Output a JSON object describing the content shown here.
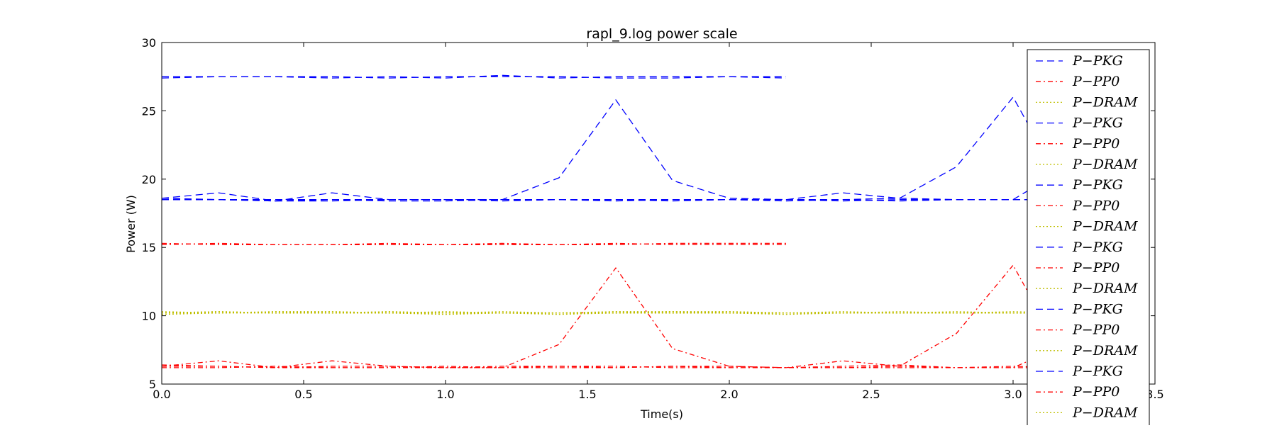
{
  "chart_data": {
    "type": "line",
    "title": "rapl_9.log power scale",
    "xlabel": "Time(s)",
    "ylabel": "Power (W)",
    "xlim": [
      0.0,
      3.5
    ],
    "ylim": [
      5,
      30
    ],
    "xticks": [
      "0.0",
      "0.5",
      "1.0",
      "1.5",
      "2.0",
      "2.5",
      "3.0",
      "3.5"
    ],
    "yticks": [
      "5",
      "10",
      "15",
      "20",
      "25",
      "30"
    ],
    "grid": false,
    "legend_placement": "right, overflowing below the axes",
    "legend": [
      "P−PKG",
      "P−PP0",
      "P−DRAM",
      "P−PKG",
      "P−PP0",
      "P−DRAM",
      "P−PKG",
      "P−PP0",
      "P−DRAM",
      "P−PKG",
      "P−PP0",
      "P−DRAM",
      "P−PKG",
      "P−PP0",
      "P−DRAM",
      "P−PKG",
      "P−PP0",
      "P−DRAM"
    ],
    "colors": {
      "PKG": "#0000ff",
      "PP0": "#ff0000",
      "DRAM": "#bfbf00"
    },
    "series": [
      {
        "name": "P−PKG",
        "style": "dashed",
        "color": "#0000ff",
        "x": [
          0.0,
          0.2,
          0.4,
          0.6,
          0.8,
          1.0,
          1.2,
          1.4,
          1.6,
          1.8,
          2.0,
          2.2
        ],
        "y": [
          27.5,
          27.5,
          27.5,
          27.4,
          27.5,
          27.4,
          27.6,
          27.4,
          27.5,
          27.5,
          27.5,
          27.5
        ]
      },
      {
        "name": "P−PP0",
        "style": "dashdot",
        "color": "#ff0000",
        "x": [
          0.0,
          0.2,
          0.4,
          0.6,
          0.8,
          1.0,
          1.2,
          1.4,
          1.6,
          1.8,
          2.0,
          2.2
        ],
        "y": [
          15.2,
          15.3,
          15.2,
          15.2,
          15.2,
          15.2,
          15.3,
          15.2,
          15.2,
          15.3,
          15.3,
          15.3
        ]
      },
      {
        "name": "P−DRAM",
        "style": "dotted",
        "color": "#bfbf00",
        "x": [
          0.0,
          0.2,
          0.4,
          0.6,
          0.8,
          1.0,
          1.2,
          1.4,
          1.6,
          1.8,
          2.0,
          2.2
        ],
        "y": [
          10.2,
          10.3,
          10.2,
          10.2,
          10.3,
          10.2,
          10.2,
          10.2,
          10.3,
          10.2,
          10.2,
          10.2
        ]
      },
      {
        "name": "P−PKG",
        "style": "dashed",
        "color": "#0000ff",
        "x": [
          0.0,
          0.2,
          0.4,
          0.6,
          0.8,
          1.0,
          1.2,
          1.4,
          1.6,
          1.8,
          2.0,
          2.2
        ],
        "y": [
          27.4,
          27.5,
          27.5,
          27.5,
          27.4,
          27.5,
          27.5,
          27.5,
          27.4,
          27.4,
          27.5,
          27.4
        ]
      },
      {
        "name": "P−PP0",
        "style": "dashdot",
        "color": "#ff0000",
        "x": [
          0.0,
          0.2,
          0.4,
          0.6,
          0.8,
          1.0,
          1.2,
          1.4,
          1.6,
          1.8,
          2.0,
          2.2
        ],
        "y": [
          15.3,
          15.2,
          15.2,
          15.2,
          15.3,
          15.2,
          15.2,
          15.2,
          15.3,
          15.2,
          15.2,
          15.2
        ]
      },
      {
        "name": "P−DRAM",
        "style": "dotted",
        "color": "#bfbf00",
        "x": [
          0.0,
          0.2,
          0.4,
          0.6,
          0.8,
          1.0,
          1.2,
          1.4,
          1.6,
          1.8,
          2.0,
          2.2
        ],
        "y": [
          10.3,
          10.2,
          10.3,
          10.3,
          10.2,
          10.2,
          10.3,
          10.2,
          10.2,
          10.3,
          10.3,
          10.2
        ]
      },
      {
        "name": "P−PKG",
        "style": "dashed",
        "color": "#0000ff",
        "x": [
          0.0,
          0.2,
          0.4,
          0.6,
          0.8,
          1.0,
          1.2,
          1.4,
          1.6,
          1.8,
          2.0,
          2.2,
          2.4,
          2.6,
          2.8,
          3.0,
          3.2
        ],
        "y": [
          18.6,
          19.0,
          18.4,
          19.0,
          18.5,
          18.5,
          18.5,
          20.1,
          25.8,
          19.9,
          18.6,
          18.5,
          19.0,
          18.6,
          20.9,
          26.0,
          18.5
        ]
      },
      {
        "name": "P−PP0",
        "style": "dashdot",
        "color": "#ff0000",
        "x": [
          0.0,
          0.2,
          0.4,
          0.6,
          0.8,
          1.0,
          1.2,
          1.4,
          1.6,
          1.8,
          2.0,
          2.2,
          2.4,
          2.6,
          2.8,
          3.0,
          3.2
        ],
        "y": [
          6.3,
          6.7,
          6.2,
          6.7,
          6.3,
          6.2,
          6.2,
          7.9,
          13.5,
          7.6,
          6.3,
          6.2,
          6.7,
          6.3,
          8.7,
          13.7,
          6.2
        ]
      },
      {
        "name": "P−DRAM",
        "style": "dotted",
        "color": "#bfbf00",
        "x": [
          0.0,
          0.2,
          0.4,
          0.6,
          0.8,
          1.0,
          1.2,
          1.4,
          1.6,
          1.8,
          2.0,
          2.2,
          2.4,
          2.6,
          2.8,
          3.0,
          3.2
        ],
        "y": [
          10.2,
          10.3,
          10.2,
          10.3,
          10.2,
          10.2,
          10.2,
          10.2,
          10.3,
          10.3,
          10.2,
          10.2,
          10.2,
          10.3,
          10.2,
          10.3,
          10.2
        ]
      },
      {
        "name": "P−PKG",
        "style": "dashed",
        "color": "#0000ff",
        "x": [
          0.0,
          0.2,
          0.4,
          0.6,
          0.8,
          1.0,
          1.2,
          1.4,
          1.6,
          1.8,
          2.0,
          2.2,
          2.4,
          2.6,
          2.8,
          3.0,
          3.2,
          3.4
        ],
        "y": [
          18.6,
          18.5,
          18.4,
          18.5,
          18.5,
          18.5,
          18.5,
          18.5,
          18.4,
          18.5,
          18.5,
          18.4,
          18.5,
          18.6,
          18.5,
          18.5,
          21.0,
          24.0
        ]
      },
      {
        "name": "P−PP0",
        "style": "dashdot",
        "color": "#ff0000",
        "x": [
          0.0,
          0.2,
          0.4,
          0.6,
          0.8,
          1.0,
          1.2,
          1.4,
          1.6,
          1.8,
          2.0,
          2.2,
          2.4,
          2.6,
          2.8,
          3.0,
          3.2
        ],
        "y": [
          6.4,
          6.3,
          6.2,
          6.3,
          6.3,
          6.2,
          6.3,
          6.3,
          6.2,
          6.3,
          6.3,
          6.2,
          6.3,
          6.4,
          6.2,
          6.2,
          8.0
        ]
      },
      {
        "name": "P−DRAM",
        "style": "dotted",
        "color": "#bfbf00",
        "x": [
          0.0,
          0.2,
          0.4,
          0.6,
          0.8,
          1.0,
          1.2,
          1.4,
          1.6,
          1.8,
          2.0,
          2.2,
          2.4,
          2.6,
          2.8,
          3.0,
          3.2
        ],
        "y": [
          10.2,
          10.2,
          10.3,
          10.2,
          10.2,
          10.3,
          10.2,
          10.2,
          10.2,
          10.2,
          10.3,
          10.2,
          10.3,
          10.2,
          10.2,
          10.2,
          10.2
        ]
      },
      {
        "name": "P−PKG",
        "style": "dashed",
        "color": "#0000ff",
        "x": [
          0.0,
          0.2,
          0.4,
          0.6,
          0.8,
          1.0,
          1.2,
          1.4,
          1.6,
          1.8,
          2.0,
          2.2,
          2.4,
          2.6,
          2.8,
          3.0,
          3.2
        ],
        "y": [
          18.5,
          18.5,
          18.5,
          18.5,
          18.4,
          18.4,
          18.5,
          18.5,
          18.5,
          18.5,
          18.5,
          18.5,
          18.4,
          18.5,
          18.5,
          18.5,
          18.5
        ]
      },
      {
        "name": "P−PP0",
        "style": "dashdot",
        "color": "#ff0000",
        "x": [
          0.0,
          0.2,
          0.4,
          0.6,
          0.8,
          1.0,
          1.2,
          1.4,
          1.6,
          1.8,
          2.0,
          2.2,
          2.4,
          2.6,
          2.8,
          3.0,
          3.2
        ],
        "y": [
          6.3,
          6.3,
          6.2,
          6.2,
          6.2,
          6.2,
          6.2,
          6.3,
          6.3,
          6.2,
          6.2,
          6.2,
          6.2,
          6.3,
          6.2,
          6.2,
          6.2
        ]
      },
      {
        "name": "P−DRAM",
        "style": "dotted",
        "color": "#bfbf00",
        "x": [
          0.0,
          0.2,
          0.4,
          0.6,
          0.8,
          1.0,
          1.2,
          1.4,
          1.6,
          1.8,
          2.0,
          2.2,
          2.4,
          2.6,
          2.8,
          3.0,
          3.2
        ],
        "y": [
          10.1,
          10.2,
          10.2,
          10.2,
          10.2,
          10.1,
          10.2,
          10.1,
          10.2,
          10.2,
          10.2,
          10.1,
          10.2,
          10.2,
          10.2,
          10.2,
          10.2
        ]
      },
      {
        "name": "P−PKG",
        "style": "dashed",
        "color": "#0000ff",
        "x": [
          0.0,
          0.2,
          0.4,
          0.6,
          0.8,
          1.0,
          1.2,
          1.4,
          1.6,
          1.8,
          2.0,
          2.2,
          2.4,
          2.6,
          2.8,
          3.0,
          3.2
        ],
        "y": [
          18.5,
          18.5,
          18.4,
          18.4,
          18.5,
          18.5,
          18.4,
          18.5,
          18.5,
          18.4,
          18.5,
          18.5,
          18.5,
          18.4,
          18.5,
          18.5,
          18.5
        ]
      },
      {
        "name": "P−PP0",
        "style": "dashdot",
        "color": "#ff0000",
        "x": [
          0.0,
          0.2,
          0.4,
          0.6,
          0.8,
          1.0,
          1.2,
          1.4,
          1.6,
          1.8,
          2.0,
          2.2,
          2.4,
          2.6,
          2.8,
          3.0,
          3.2
        ],
        "y": [
          6.2,
          6.2,
          6.3,
          6.2,
          6.2,
          6.3,
          6.2,
          6.2,
          6.2,
          6.3,
          6.2,
          6.2,
          6.2,
          6.2,
          6.2,
          6.3,
          6.2
        ]
      },
      {
        "name": "P−DRAM",
        "style": "dotted",
        "color": "#bfbf00",
        "x": [
          0.0,
          0.2,
          0.4,
          0.6,
          0.8,
          1.0,
          1.2,
          1.4,
          1.6,
          1.8,
          2.0,
          2.2,
          2.4,
          2.6,
          2.8,
          3.0,
          3.2
        ],
        "y": [
          10.2,
          10.3,
          10.2,
          10.2,
          10.3,
          10.2,
          10.2,
          10.2,
          10.2,
          10.3,
          10.2,
          10.2,
          10.2,
          10.2,
          10.3,
          10.2,
          10.2
        ]
      }
    ]
  }
}
